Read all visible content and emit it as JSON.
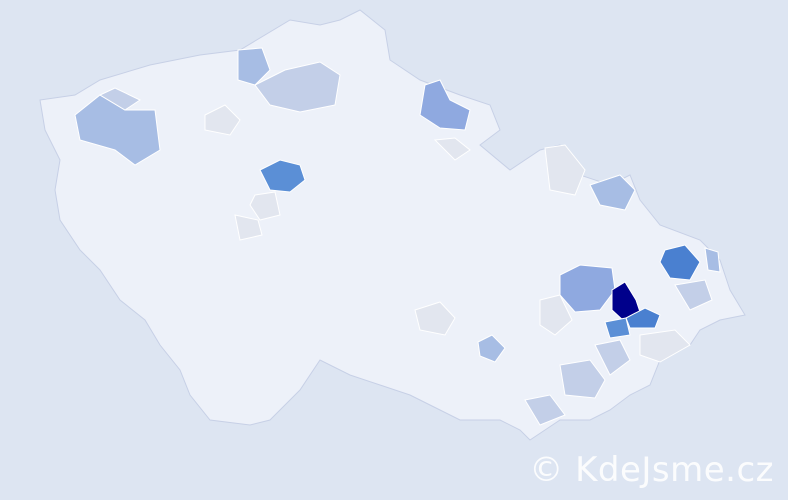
{
  "map": {
    "colors": {
      "background": "#dde5f2",
      "base": "#edf1f9",
      "border": "#c7d0e6",
      "neutral": "#e2e6ef",
      "level1": "#c3cfe8",
      "level2": "#a7bde4",
      "level3": "#8fa9e0",
      "level4": "#5b8fd6",
      "level5": "#4a80d0",
      "level6": "#00008b"
    }
  },
  "watermark": "© KdeJsme.cz"
}
